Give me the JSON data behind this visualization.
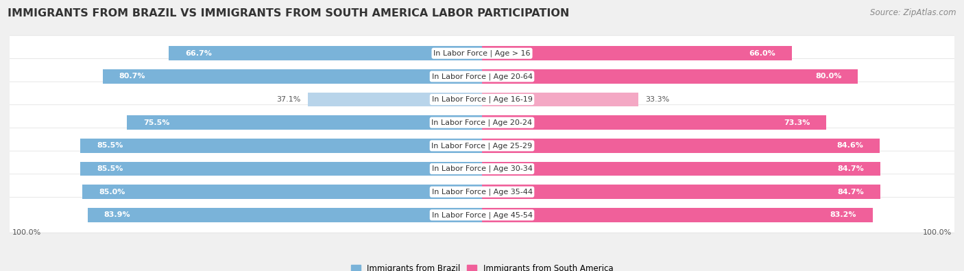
{
  "title": "IMMIGRANTS FROM BRAZIL VS IMMIGRANTS FROM SOUTH AMERICA LABOR PARTICIPATION",
  "source": "Source: ZipAtlas.com",
  "categories": [
    "In Labor Force | Age > 16",
    "In Labor Force | Age 20-64",
    "In Labor Force | Age 16-19",
    "In Labor Force | Age 20-24",
    "In Labor Force | Age 25-29",
    "In Labor Force | Age 30-34",
    "In Labor Force | Age 35-44",
    "In Labor Force | Age 45-54"
  ],
  "brazil_values": [
    66.7,
    80.7,
    37.1,
    75.5,
    85.5,
    85.5,
    85.0,
    83.9
  ],
  "south_america_values": [
    66.0,
    80.0,
    33.3,
    73.3,
    84.6,
    84.7,
    84.7,
    83.2
  ],
  "brazil_color": "#7ab3d9",
  "brazil_color_light": "#b8d4ea",
  "south_america_color": "#f0609a",
  "south_america_color_light": "#f4a8c4",
  "max_value": 100.0,
  "background_color": "#f0f0f0",
  "legend_brazil": "Immigrants from Brazil",
  "legend_south_america": "Immigrants from South America",
  "title_fontsize": 11.5,
  "label_fontsize": 8,
  "value_fontsize": 8,
  "source_fontsize": 8.5
}
